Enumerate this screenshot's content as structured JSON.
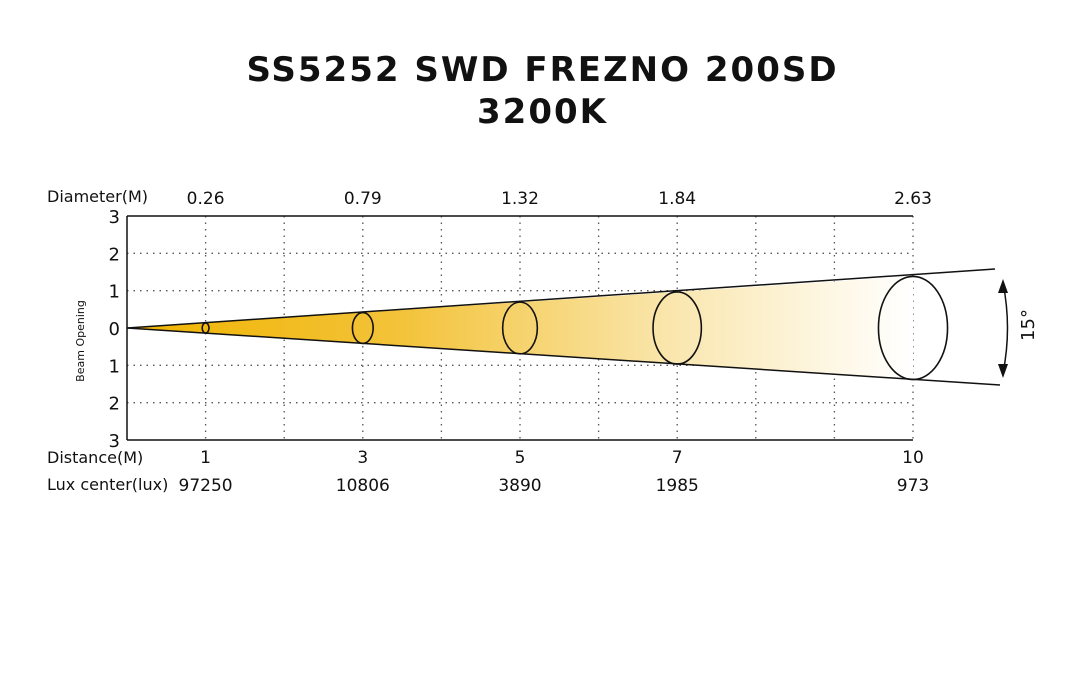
{
  "title_line1": "SS5252 SWD FREZNO 200SD",
  "title_line2": "3200K",
  "labels": {
    "diameter": "Diameter(M)",
    "beam_opening": "Beam Opening",
    "distance": "Distance(M)",
    "lux_center": "Lux center(lux)",
    "angle": "15°"
  },
  "chart_data": {
    "type": "beam-diagram",
    "beam_angle_deg": 15,
    "y_ticks": [
      "3",
      "2",
      "1",
      "0",
      "1",
      "2",
      "3"
    ],
    "x_range_m": [
      0,
      10
    ],
    "grid": true,
    "points": [
      {
        "distance": "1",
        "diameter": "0.26",
        "lux": "97250"
      },
      {
        "distance": "3",
        "diameter": "0.79",
        "lux": "10806"
      },
      {
        "distance": "5",
        "diameter": "1.32",
        "lux": "3890"
      },
      {
        "distance": "7",
        "diameter": "1.84",
        "lux": "1985"
      },
      {
        "distance": "10",
        "diameter": "2.63",
        "lux": "973"
      }
    ],
    "colors": {
      "beam_start": "#f0b400",
      "beam_end": "#ffffff",
      "lines": "#111111"
    }
  }
}
